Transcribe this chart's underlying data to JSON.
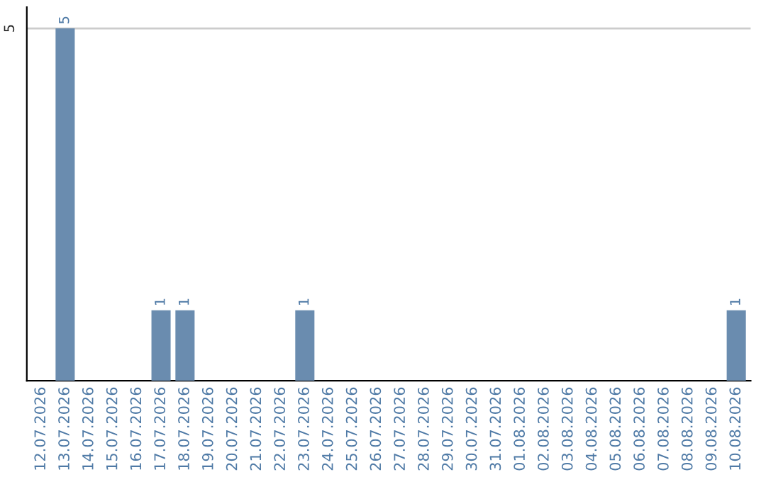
{
  "chart_data": {
    "type": "bar",
    "categories": [
      "12.07.2026",
      "13.07.2026",
      "14.07.2026",
      "15.07.2026",
      "16.07.2026",
      "17.07.2026",
      "18.07.2026",
      "19.07.2026",
      "20.07.2026",
      "21.07.2026",
      "22.07.2026",
      "23.07.2026",
      "24.07.2026",
      "25.07.2026",
      "26.07.2026",
      "27.07.2026",
      "28.07.2026",
      "29.07.2026",
      "30.07.2026",
      "31.07.2026",
      "01.08.2026",
      "02.08.2026",
      "03.08.2026",
      "04.08.2026",
      "05.08.2026",
      "06.08.2026",
      "07.08.2026",
      "08.08.2026",
      "09.08.2026",
      "10.08.2026"
    ],
    "values": [
      0,
      5,
      0,
      0,
      0,
      1,
      1,
      0,
      0,
      0,
      0,
      1,
      0,
      0,
      0,
      0,
      0,
      0,
      0,
      0,
      0,
      0,
      0,
      0,
      0,
      0,
      0,
      0,
      0,
      1
    ],
    "value_labels": [
      null,
      "5",
      null,
      null,
      null,
      "1",
      "1",
      null,
      null,
      null,
      null,
      "1",
      null,
      null,
      null,
      null,
      null,
      null,
      null,
      null,
      null,
      null,
      null,
      null,
      null,
      null,
      null,
      null,
      null,
      "1"
    ],
    "color": "#6a8caf",
    "ylim": [
      0,
      5.3
    ],
    "yticks": [
      5
    ],
    "grid": "y",
    "legend": false
  }
}
